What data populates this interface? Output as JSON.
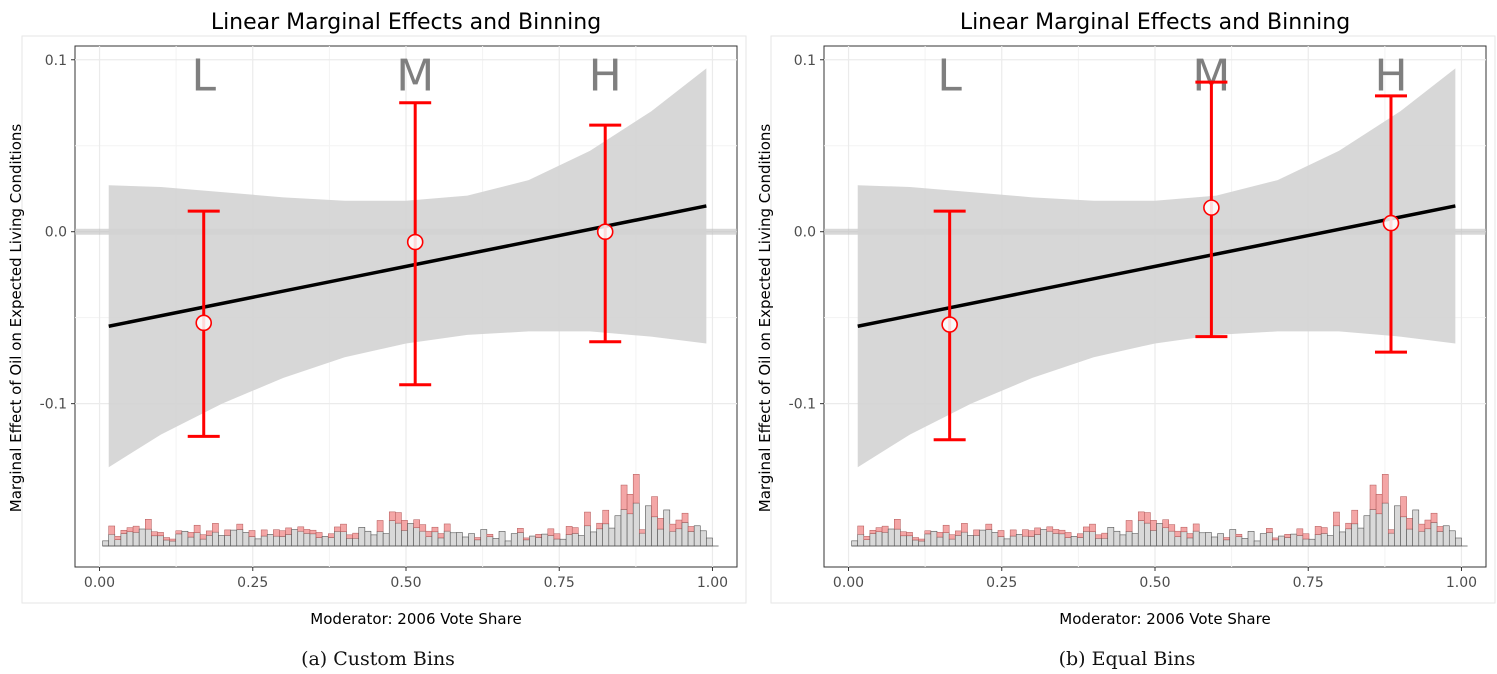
{
  "panels": [
    {
      "caption": "(a) Custom Bins",
      "xlabel": "Moderator: 2006 Vote Share",
      "ylabel": "Marginal Effect of Oil on Expected Living Conditions",
      "title": "Linear Marginal Effects and Binning"
    },
    {
      "caption": "(b) Equal Bins",
      "xlabel": "Moderator: 2006 Vote Share",
      "ylabel": "Marginal Effect of Oil on Expected Living Conditions",
      "title": "Linear Marginal Effects and Binning"
    }
  ],
  "colors": {
    "ci_band": "#d3d3d3",
    "line": "#000000",
    "bin_estimates": "#ff0000",
    "hist_fill": "#d9d9d9",
    "hist_treated": "#f4a6a6",
    "grid": "#ebebeb"
  },
  "chart_data": [
    {
      "type": "line",
      "title": "Linear Marginal Effects and Binning",
      "xlabel": "Moderator: 2006 Vote Share",
      "ylabel": "Marginal Effect of Oil on Expected Living Conditions",
      "xlim": [
        -0.04,
        1.04
      ],
      "ylim": [
        -0.195,
        0.108
      ],
      "x_ticks": [
        0.0,
        0.25,
        0.5,
        0.75,
        1.0
      ],
      "x_tick_labels": [
        "0.00",
        "0.25",
        "0.50",
        "0.75",
        "1.00"
      ],
      "y_ticks": [
        0.1,
        0.0,
        -0.1
      ],
      "y_tick_labels": [
        "0.1",
        "0.0",
        "-0.1"
      ],
      "grid": true,
      "reference_line_y": 0,
      "linear_fit": {
        "x": [
          0.015,
          0.99
        ],
        "y": [
          -0.055,
          0.015
        ]
      },
      "ci_band": {
        "x": [
          0.015,
          0.1,
          0.2,
          0.3,
          0.4,
          0.5,
          0.6,
          0.7,
          0.8,
          0.9,
          0.99
        ],
        "upper": [
          0.027,
          0.026,
          0.023,
          0.02,
          0.018,
          0.018,
          0.021,
          0.03,
          0.047,
          0.07,
          0.095
        ],
        "lower": [
          -0.137,
          -0.118,
          -0.1,
          -0.085,
          -0.073,
          -0.065,
          -0.06,
          -0.058,
          -0.058,
          -0.061,
          -0.065
        ]
      },
      "bins": [
        {
          "label": "L",
          "x": 0.17,
          "estimate": -0.053,
          "ci_low": -0.119,
          "ci_high": 0.012
        },
        {
          "label": "M",
          "x": 0.515,
          "estimate": -0.006,
          "ci_low": -0.089,
          "ci_high": 0.075
        },
        {
          "label": "H",
          "x": 0.825,
          "estimate": 0.0,
          "ci_low": -0.064,
          "ci_high": 0.062
        }
      ]
    },
    {
      "type": "line",
      "title": "Linear Marginal Effects and Binning",
      "xlabel": "Moderator: 2006 Vote Share",
      "ylabel": "Marginal Effect of Oil on Expected Living Conditions",
      "xlim": [
        -0.04,
        1.04
      ],
      "ylim": [
        -0.195,
        0.108
      ],
      "x_ticks": [
        0.0,
        0.25,
        0.5,
        0.75,
        1.0
      ],
      "x_tick_labels": [
        "0.00",
        "0.25",
        "0.50",
        "0.75",
        "1.00"
      ],
      "y_ticks": [
        0.1,
        0.0,
        -0.1
      ],
      "y_tick_labels": [
        "0.1",
        "0.0",
        "-0.1"
      ],
      "grid": true,
      "reference_line_y": 0,
      "linear_fit": {
        "x": [
          0.015,
          0.99
        ],
        "y": [
          -0.055,
          0.015
        ]
      },
      "ci_band": {
        "x": [
          0.015,
          0.1,
          0.2,
          0.3,
          0.4,
          0.5,
          0.6,
          0.7,
          0.8,
          0.9,
          0.99
        ],
        "upper": [
          0.027,
          0.026,
          0.023,
          0.02,
          0.018,
          0.018,
          0.021,
          0.03,
          0.047,
          0.07,
          0.095
        ],
        "lower": [
          -0.137,
          -0.118,
          -0.1,
          -0.085,
          -0.073,
          -0.065,
          -0.06,
          -0.058,
          -0.058,
          -0.061,
          -0.065
        ]
      },
      "bins": [
        {
          "label": "L",
          "x": 0.165,
          "estimate": -0.054,
          "ci_low": -0.121,
          "ci_high": 0.012
        },
        {
          "label": "M",
          "x": 0.592,
          "estimate": 0.014,
          "ci_low": -0.061,
          "ci_high": 0.087
        },
        {
          "label": "H",
          "x": 0.885,
          "estimate": 0.005,
          "ci_low": -0.07,
          "ci_high": 0.079
        }
      ]
    }
  ]
}
